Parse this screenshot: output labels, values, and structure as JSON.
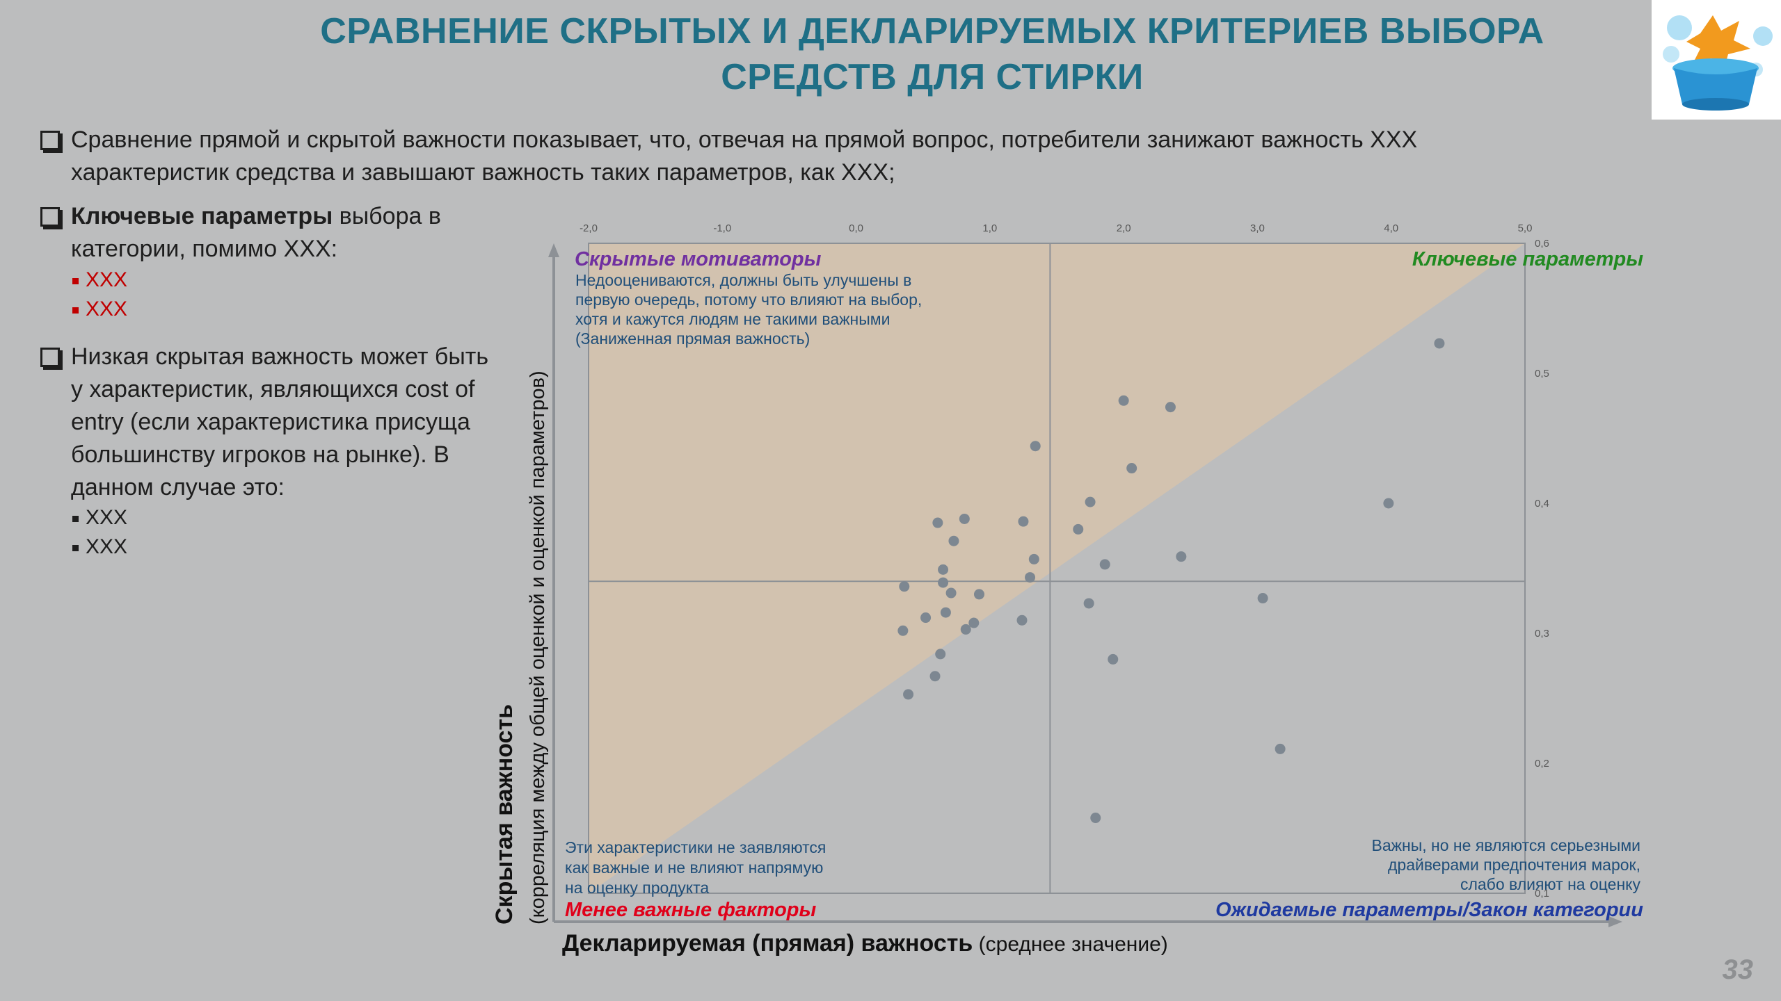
{
  "slide": {
    "title_line1": "СРАВНЕНИЕ СКРЫТЫХ И ДЕКЛАРИРУЕМЫХ КРИТЕРИЕВ ВЫБОРА",
    "title_line2": "СРЕДСТВ ДЛЯ СТИРКИ",
    "page_number": "33"
  },
  "bullets": [
    {
      "text": "Сравнение прямой и скрытой важности показывает, что, отвечая на прямой вопрос, потребители занижают важность ХХХ характеристик средства и завышают важность таких параметров, как ХХХ;"
    },
    {
      "bold": "Ключевые параметры",
      "text": " выбора в категории, помимо ХХХ:",
      "items": [
        "ХХХ",
        "ХХХ"
      ]
    },
    {
      "text": "Низкая скрытая важность  может быть у характеристик, являющихся cost of entry (если характеристика присуща большинству игроков на рынке). В данном случае это:",
      "items": [
        "ХХХ",
        "ХХХ"
      ]
    }
  ],
  "chart_data": {
    "type": "scatter",
    "xlabel_bold": "Декларируемая (прямая) важность",
    "xlabel_light": " (среднее значение)",
    "ylabel_bold": "Скрытая важность",
    "ylabel_light": "(корреляция между общей оценкой и оценкой параметров)",
    "x_ticks": [
      "-2,0",
      "-1,0",
      "0,0",
      "1,0",
      "2,0",
      "3,0",
      "4,0",
      "5,0"
    ],
    "y_ticks": [
      "0,1",
      "0,2",
      "0,3",
      "0,4",
      "0,5",
      "0,6"
    ],
    "xlim": [
      -2,
      5
    ],
    "ylim": [
      0.1,
      0.6
    ],
    "x_divider": 1.45,
    "y_divider": 0.34,
    "quadrants": {
      "top_left_title": "Скрытые мотиваторы",
      "top_left_desc": [
        "Недооцениваются, должны быть улучшены в",
        "первую очередь, потому что влияют на выбор,",
        "хотя и кажутся людям не такими важными",
        "(Заниженная прямая важность)"
      ],
      "top_right_title": "Ключевые параметры",
      "bottom_left_title": "Менее важные факторы",
      "bottom_left_desc": [
        "Эти характеристики не заявляются",
        "как важные и не влияют напрямую",
        "на оценку продукта"
      ],
      "bottom_right_title": "Ожидаемые параметры/Закон категории",
      "bottom_right_desc": [
        "Важны, но не являются серьезными",
        "драйверами предпочтения марок,",
        "слабо влияют на оценку"
      ]
    },
    "colors": {
      "points": "#7d8791",
      "triangle": "#d6c3ad",
      "title_purple": "#7030a0",
      "title_green": "#218a21",
      "title_red": "#e0001a",
      "title_blue": "#1f3aa0",
      "desc_blue": "#1f4e79"
    },
    "points": [
      {
        "x": 4.36,
        "y": 0.523
      },
      {
        "x": 2.0,
        "y": 0.479
      },
      {
        "x": 2.35,
        "y": 0.474
      },
      {
        "x": 1.34,
        "y": 0.444
      },
      {
        "x": 2.06,
        "y": 0.427
      },
      {
        "x": 3.98,
        "y": 0.4
      },
      {
        "x": 1.75,
        "y": 0.401
      },
      {
        "x": 0.81,
        "y": 0.388
      },
      {
        "x": 0.61,
        "y": 0.385
      },
      {
        "x": 1.25,
        "y": 0.386
      },
      {
        "x": 1.66,
        "y": 0.38
      },
      {
        "x": 0.73,
        "y": 0.371
      },
      {
        "x": 2.43,
        "y": 0.359
      },
      {
        "x": 1.33,
        "y": 0.357
      },
      {
        "x": 1.86,
        "y": 0.353
      },
      {
        "x": 0.65,
        "y": 0.349
      },
      {
        "x": 1.3,
        "y": 0.343
      },
      {
        "x": 0.65,
        "y": 0.339
      },
      {
        "x": 0.36,
        "y": 0.336
      },
      {
        "x": 0.71,
        "y": 0.331
      },
      {
        "x": 0.92,
        "y": 0.33
      },
      {
        "x": 3.04,
        "y": 0.327
      },
      {
        "x": 1.74,
        "y": 0.323
      },
      {
        "x": 0.67,
        "y": 0.316
      },
      {
        "x": 0.52,
        "y": 0.312
      },
      {
        "x": 0.88,
        "y": 0.308
      },
      {
        "x": 1.24,
        "y": 0.31
      },
      {
        "x": 0.82,
        "y": 0.303
      },
      {
        "x": 0.35,
        "y": 0.302
      },
      {
        "x": 0.63,
        "y": 0.284
      },
      {
        "x": 1.92,
        "y": 0.28
      },
      {
        "x": 0.59,
        "y": 0.267
      },
      {
        "x": 0.39,
        "y": 0.253
      },
      {
        "x": 3.17,
        "y": 0.211
      },
      {
        "x": 1.79,
        "y": 0.158
      }
    ]
  }
}
